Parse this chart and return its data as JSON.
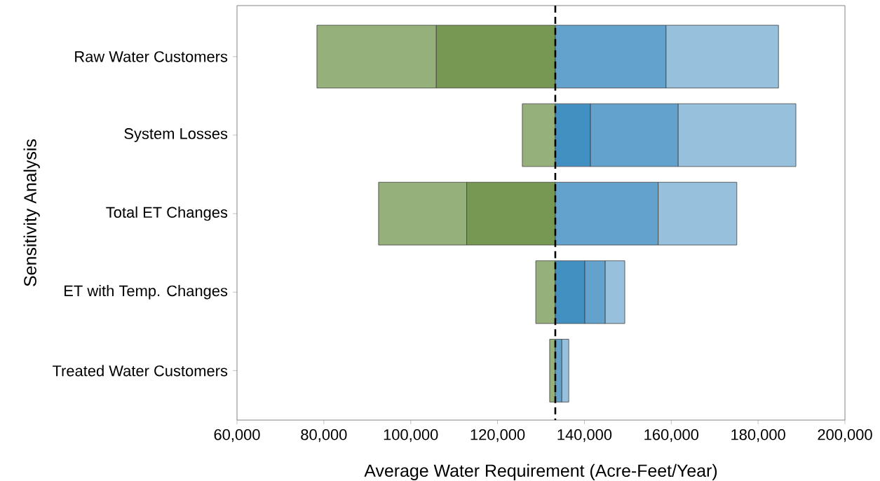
{
  "chart_data": {
    "type": "bar",
    "orientation": "horizontal",
    "xlabel": "Average Water Requirement (Acre-Feet/Year)",
    "ylabel": "Sensitivity Analysis",
    "categories": [
      "Raw Water Customers",
      "System Losses",
      "Total ET Changes",
      "ET with Temp. Changes",
      "Treated Water Customers"
    ],
    "series": [
      {
        "color": "#96b07b",
        "base": [
          78400,
          125700,
          92600,
          128800,
          132000
        ],
        "values": [
          27500,
          7600,
          20300,
          4500,
          1300
        ]
      },
      {
        "color": "#779853",
        "base": [
          105900,
          null,
          112900,
          null,
          null
        ],
        "values": [
          27400,
          null,
          20400,
          null,
          null
        ]
      },
      {
        "color": "#4290c2",
        "base": [
          null,
          133300,
          null,
          133300,
          null
        ],
        "values": [
          null,
          8100,
          null,
          6800,
          null
        ]
      },
      {
        "color": "#62a2cc",
        "base": [
          133300,
          141400,
          133300,
          140100,
          133300
        ],
        "values": [
          25500,
          20200,
          23700,
          4700,
          1500
        ]
      },
      {
        "color": "#96c0dc",
        "base": [
          158800,
          161600,
          157000,
          144800,
          134800
        ],
        "values": [
          25900,
          27100,
          18100,
          4500,
          1600
        ]
      }
    ],
    "xlim": [
      60000,
      200000
    ],
    "xticks": [
      {
        "value": 60000,
        "label": "60,000"
      },
      {
        "value": 80000,
        "label": "80,000"
      },
      {
        "value": 100000,
        "label": "100,000"
      },
      {
        "value": 120000,
        "label": "120,000"
      },
      {
        "value": 140000,
        "label": "140,000"
      },
      {
        "value": 160000,
        "label": "160,000"
      },
      {
        "value": 180000,
        "label": "180,000"
      },
      {
        "value": 200000,
        "label": "200,000"
      }
    ],
    "ref_lines": [
      {
        "axis": "x",
        "value": 133300,
        "color": "#000000",
        "line_style": "dashed"
      }
    ]
  }
}
